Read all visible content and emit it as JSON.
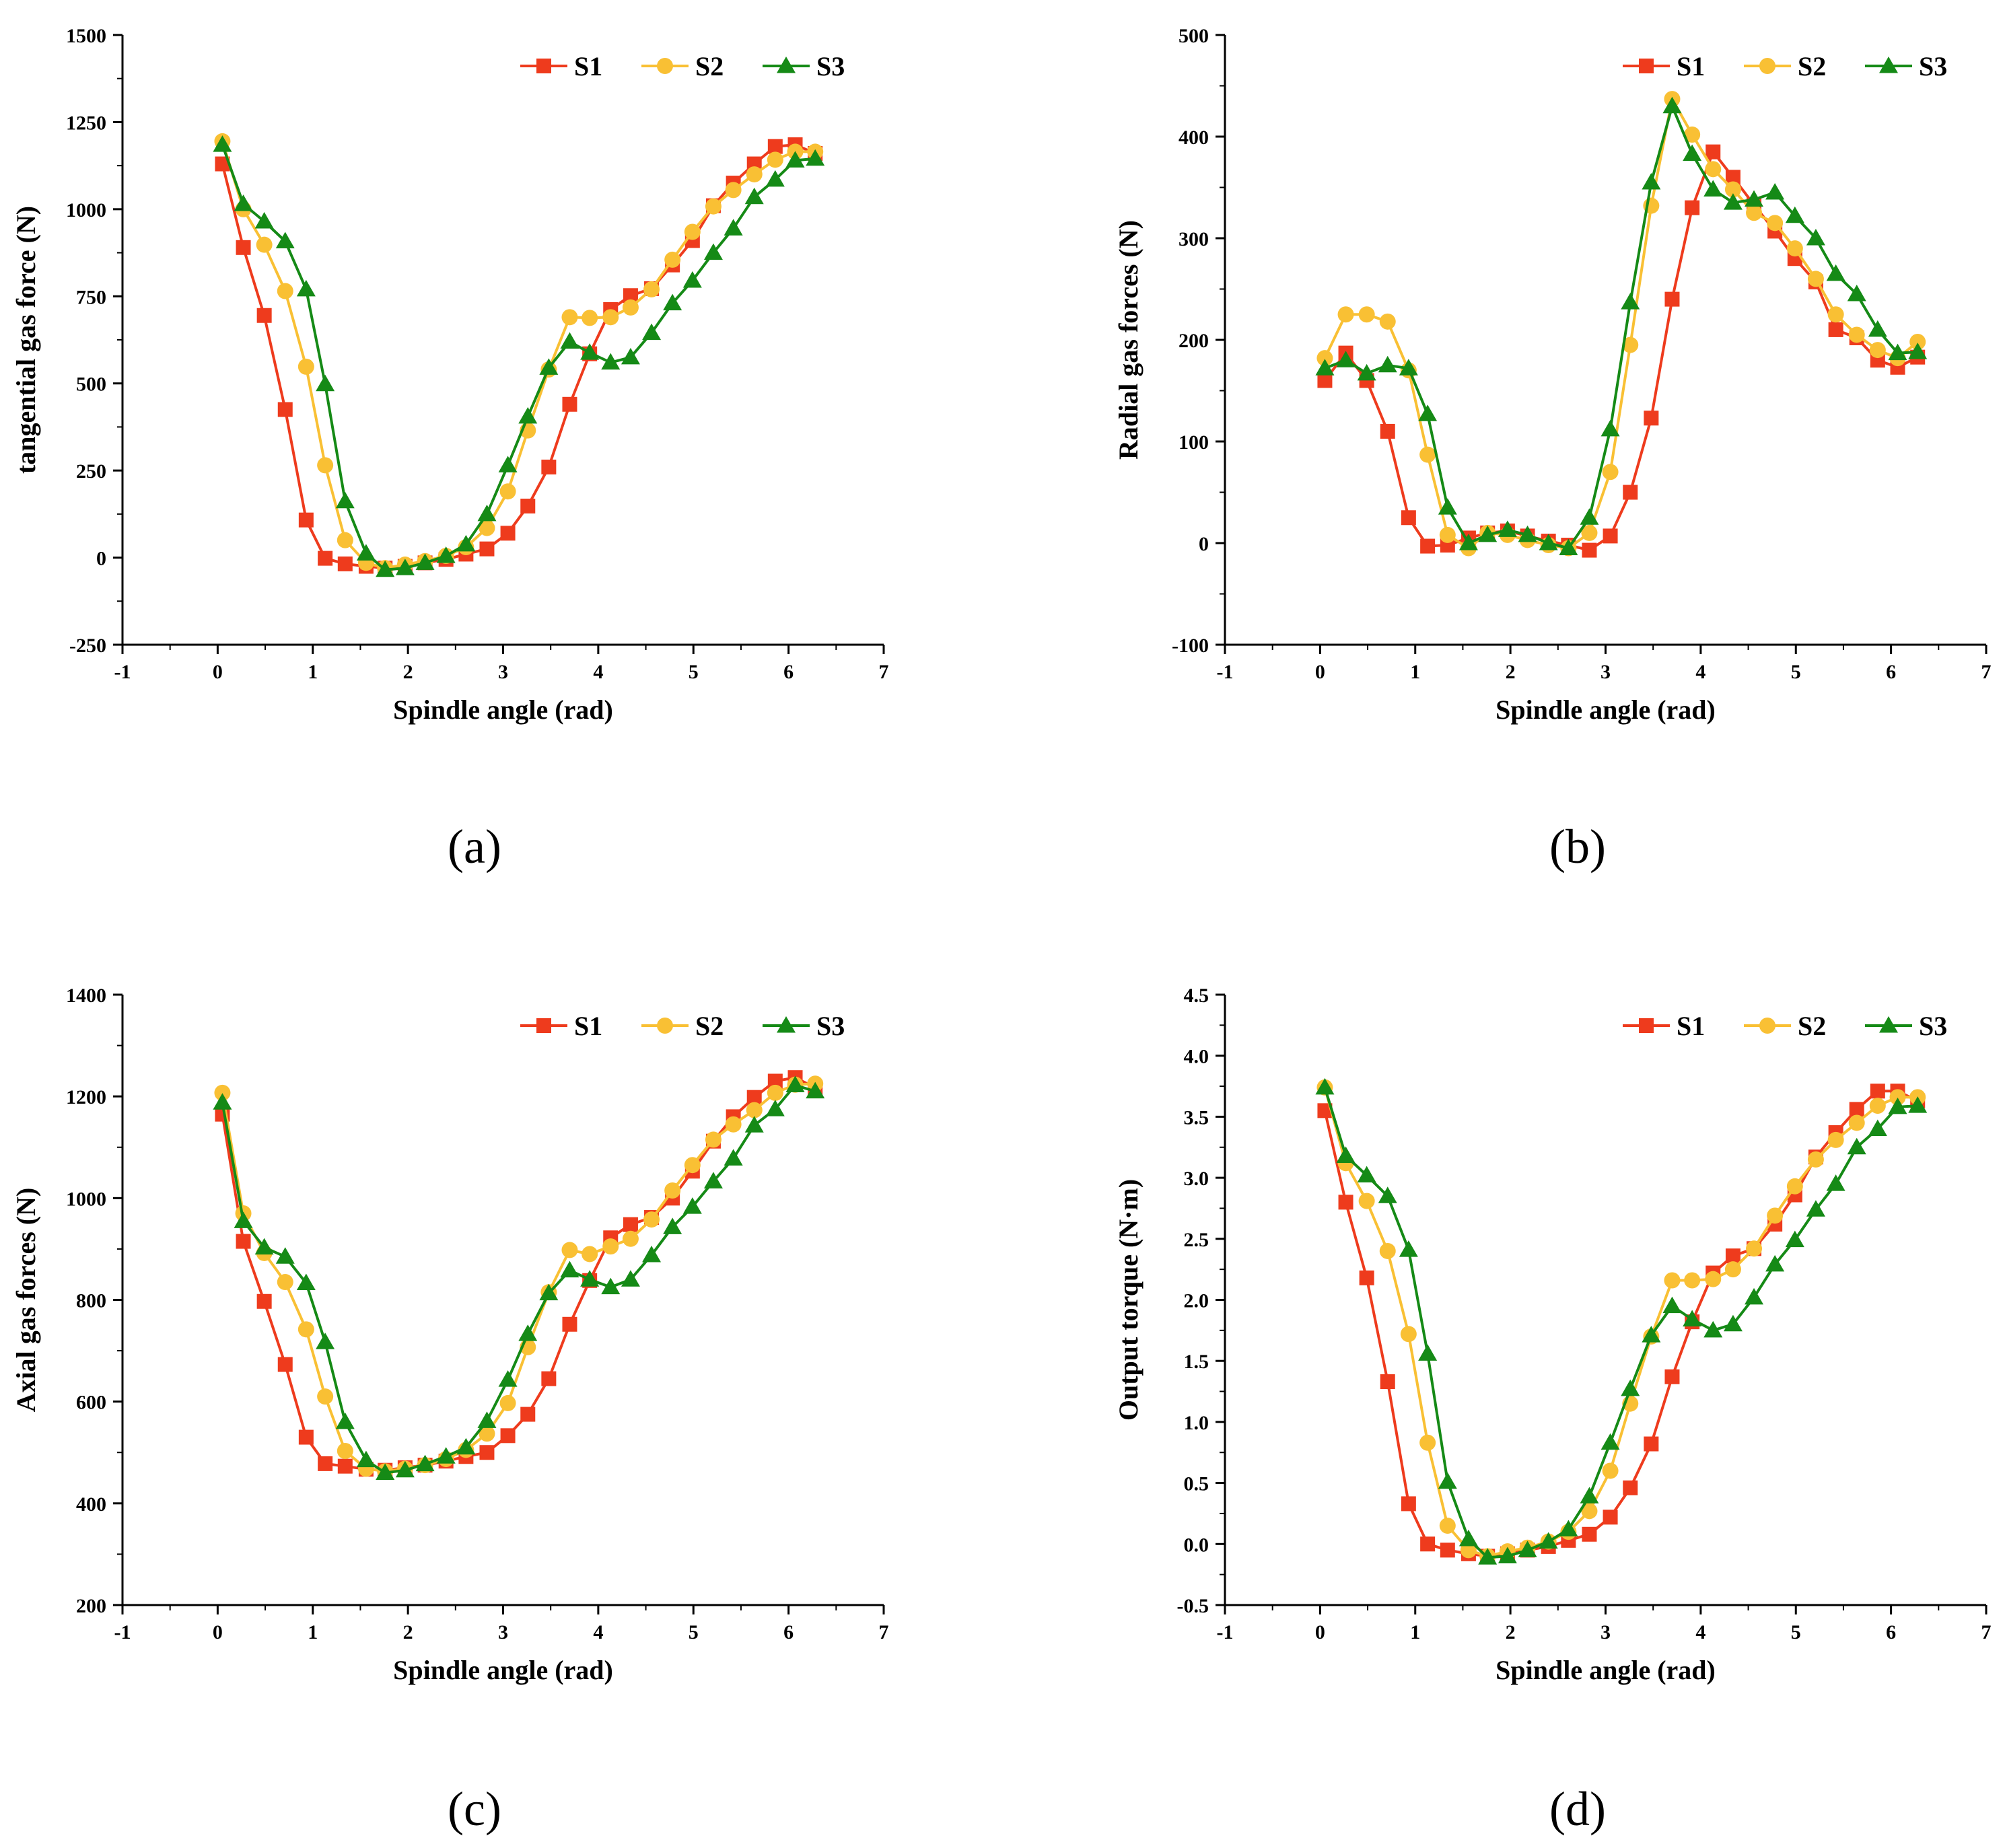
{
  "colors": {
    "S1": "#ee3b1d",
    "S2": "#f9c034",
    "S3": "#158a16",
    "axis": "#000000"
  },
  "chart_data": [
    {
      "id": "a",
      "type": "line",
      "panel_label": "(a)",
      "xlabel": "Spindle angle (rad)",
      "ylabel": "tangential gas force (N)",
      "xlim": [
        -1,
        7
      ],
      "ylim": [
        -250,
        1500
      ],
      "xticks": [
        -1,
        0,
        1,
        2,
        3,
        4,
        5,
        6,
        7
      ],
      "xtick_labels": [
        "-1",
        "0",
        "1",
        "2",
        "3",
        "4",
        "5",
        "6",
        "7"
      ],
      "yticks": [
        -250,
        0,
        250,
        500,
        750,
        1000,
        1250,
        1500
      ],
      "ytick_labels": [
        "-250",
        "0",
        "250",
        "500",
        "750",
        "1000",
        "1250",
        "1500"
      ],
      "legend": [
        "S1",
        "S2",
        "S3"
      ],
      "x": [
        0.05,
        0.27,
        0.49,
        0.71,
        0.93,
        1.13,
        1.34,
        1.56,
        1.76,
        1.97,
        2.18,
        2.4,
        2.61,
        2.83,
        3.05,
        3.26,
        3.48,
        3.7,
        3.91,
        4.13,
        4.34,
        4.56,
        4.78,
        4.99,
        5.21,
        5.42,
        5.64,
        5.86,
        6.07,
        6.28
      ],
      "series": [
        {
          "name": "S1",
          "marker": "square",
          "values": [
            1130,
            890,
            695,
            425,
            108,
            -2,
            -18,
            -25,
            -30,
            -25,
            -15,
            -5,
            10,
            25,
            70,
            148,
            260,
            440,
            585,
            712,
            752,
            772,
            840,
            910,
            1010,
            1075,
            1130,
            1180,
            1185,
            1160
          ]
        },
        {
          "name": "S2",
          "marker": "circle",
          "values": [
            1195,
            1000,
            898,
            765,
            548,
            265,
            50,
            -15,
            -30,
            -20,
            -10,
            5,
            30,
            85,
            190,
            365,
            540,
            690,
            688,
            690,
            718,
            770,
            855,
            935,
            1008,
            1055,
            1100,
            1142,
            1165,
            1165
          ]
        },
        {
          "name": "S3",
          "marker": "triangle",
          "values": [
            1185,
            1015,
            965,
            908,
            770,
            498,
            162,
            12,
            -35,
            -30,
            -15,
            5,
            38,
            125,
            265,
            405,
            545,
            620,
            588,
            560,
            575,
            645,
            730,
            795,
            875,
            945,
            1035,
            1085,
            1140,
            1145
          ]
        }
      ]
    },
    {
      "id": "b",
      "type": "line",
      "panel_label": "(b)",
      "xlabel": "Spindle angle (rad)",
      "ylabel": "Radial gas forces (N)",
      "xlim": [
        -1,
        7
      ],
      "ylim": [
        -100,
        500
      ],
      "xticks": [
        -1,
        0,
        1,
        2,
        3,
        4,
        5,
        6,
        7
      ],
      "xtick_labels": [
        "-1",
        "0",
        "1",
        "2",
        "3",
        "4",
        "5",
        "6",
        "7"
      ],
      "yticks": [
        -100,
        0,
        100,
        200,
        300,
        400,
        500
      ],
      "ytick_labels": [
        "-100",
        "0",
        "100",
        "200",
        "300",
        "400",
        "500"
      ],
      "legend": [
        "S1",
        "S2",
        "S3"
      ],
      "x": [
        0.05,
        0.27,
        0.49,
        0.71,
        0.93,
        1.13,
        1.34,
        1.56,
        1.76,
        1.97,
        2.18,
        2.4,
        2.61,
        2.83,
        3.05,
        3.26,
        3.48,
        3.7,
        3.91,
        4.13,
        4.34,
        4.56,
        4.78,
        4.99,
        5.21,
        5.42,
        5.64,
        5.86,
        6.07,
        6.28
      ],
      "series": [
        {
          "name": "S1",
          "marker": "square",
          "values": [
            160,
            187,
            160,
            110,
            25,
            -3,
            -2,
            5,
            10,
            12,
            7,
            2,
            -2,
            -7,
            7,
            50,
            123,
            240,
            330,
            385,
            360,
            333,
            307,
            280,
            257,
            210,
            202,
            180,
            173,
            183
          ]
        },
        {
          "name": "S2",
          "marker": "circle",
          "values": [
            182,
            225,
            225,
            218,
            170,
            87,
            8,
            -5,
            10,
            8,
            3,
            -2,
            -5,
            10,
            70,
            195,
            332,
            437,
            402,
            368,
            348,
            325,
            315,
            290,
            260,
            225,
            205,
            190,
            182,
            198
          ]
        },
        {
          "name": "S3",
          "marker": "triangle",
          "values": [
            172,
            180,
            167,
            175,
            172,
            127,
            35,
            0,
            8,
            13,
            8,
            0,
            -5,
            25,
            112,
            237,
            355,
            430,
            383,
            348,
            335,
            338,
            345,
            322,
            300,
            265,
            245,
            210,
            187,
            188
          ]
        }
      ]
    },
    {
      "id": "c",
      "type": "line",
      "panel_label": "(c)",
      "xlabel": "Spindle angle (rad)",
      "ylabel": "Axial gas forces (N)",
      "xlim": [
        -1,
        7
      ],
      "ylim": [
        200,
        1400
      ],
      "xticks": [
        -1,
        0,
        1,
        2,
        3,
        4,
        5,
        6,
        7
      ],
      "xtick_labels": [
        "-1",
        "0",
        "1",
        "2",
        "3",
        "4",
        "5",
        "6",
        "7"
      ],
      "yticks": [
        200,
        400,
        600,
        800,
        1000,
        1200,
        1400
      ],
      "ytick_labels": [
        "200",
        "400",
        "600",
        "800",
        "1000",
        "1200",
        "1400"
      ],
      "legend": [
        "S1",
        "S2",
        "S3"
      ],
      "x": [
        0.05,
        0.27,
        0.49,
        0.71,
        0.93,
        1.13,
        1.34,
        1.56,
        1.76,
        1.97,
        2.18,
        2.4,
        2.61,
        2.83,
        3.05,
        3.26,
        3.48,
        3.7,
        3.91,
        4.13,
        4.34,
        4.56,
        4.78,
        4.99,
        5.21,
        5.42,
        5.64,
        5.86,
        6.07,
        6.28
      ],
      "series": [
        {
          "name": "S1",
          "marker": "square",
          "values": [
            1165,
            915,
            797,
            673,
            530,
            478,
            473,
            467,
            465,
            470,
            475,
            483,
            492,
            500,
            533,
            575,
            645,
            752,
            838,
            922,
            948,
            962,
            1000,
            1053,
            1112,
            1160,
            1198,
            1230,
            1237,
            1217
          ]
        },
        {
          "name": "S2",
          "marker": "circle",
          "values": [
            1207,
            970,
            892,
            835,
            742,
            610,
            503,
            468,
            463,
            468,
            475,
            487,
            505,
            537,
            597,
            707,
            815,
            898,
            890,
            905,
            920,
            958,
            1015,
            1065,
            1115,
            1145,
            1173,
            1207,
            1223,
            1225
          ]
        },
        {
          "name": "S3",
          "marker": "triangle",
          "values": [
            1188,
            955,
            903,
            885,
            833,
            717,
            560,
            485,
            460,
            465,
            477,
            492,
            510,
            562,
            643,
            733,
            813,
            858,
            840,
            825,
            840,
            888,
            943,
            983,
            1033,
            1078,
            1143,
            1175,
            1222,
            1210
          ]
        }
      ]
    },
    {
      "id": "d",
      "type": "line",
      "panel_label": "(d)",
      "xlabel": "Spindle angle (rad)",
      "ylabel": "Output torque (N·m)",
      "xlim": [
        -1,
        7
      ],
      "ylim": [
        -0.5,
        4.5
      ],
      "xticks": [
        -1,
        0,
        1,
        2,
        3,
        4,
        5,
        6,
        7
      ],
      "xtick_labels": [
        "-1",
        "0",
        "1",
        "2",
        "3",
        "4",
        "5",
        "6",
        "7"
      ],
      "yticks": [
        -0.5,
        0.0,
        0.5,
        1.0,
        1.5,
        2.0,
        2.5,
        3.0,
        3.5,
        4.0,
        4.5
      ],
      "ytick_labels": [
        "-0.5",
        "0.0",
        "0.5",
        "1.0",
        "1.5",
        "2.0",
        "2.5",
        "3.0",
        "3.5",
        "4.0",
        "4.5"
      ],
      "legend": [
        "S1",
        "S2",
        "S3"
      ],
      "x": [
        0.05,
        0.27,
        0.49,
        0.71,
        0.93,
        1.13,
        1.34,
        1.56,
        1.76,
        1.97,
        2.18,
        2.4,
        2.61,
        2.83,
        3.05,
        3.26,
        3.48,
        3.7,
        3.91,
        4.13,
        4.34,
        4.56,
        4.78,
        4.99,
        5.21,
        5.42,
        5.64,
        5.86,
        6.07,
        6.28
      ],
      "series": [
        {
          "name": "S1",
          "marker": "square",
          "values": [
            3.55,
            2.8,
            2.18,
            1.33,
            0.33,
            0.0,
            -0.05,
            -0.08,
            -0.1,
            -0.08,
            -0.05,
            -0.02,
            0.03,
            0.08,
            0.22,
            0.46,
            0.82,
            1.37,
            1.82,
            2.22,
            2.36,
            2.42,
            2.62,
            2.86,
            3.17,
            3.37,
            3.56,
            3.71,
            3.71,
            3.63
          ]
        },
        {
          "name": "S2",
          "marker": "circle",
          "values": [
            3.74,
            3.12,
            2.81,
            2.4,
            1.72,
            0.83,
            0.15,
            -0.05,
            -0.1,
            -0.06,
            -0.03,
            0.02,
            0.1,
            0.27,
            0.6,
            1.15,
            1.7,
            2.16,
            2.16,
            2.17,
            2.25,
            2.42,
            2.69,
            2.93,
            3.15,
            3.31,
            3.45,
            3.59,
            3.66,
            3.66
          ]
        },
        {
          "name": "S3",
          "marker": "triangle",
          "values": [
            3.74,
            3.18,
            3.02,
            2.85,
            2.41,
            1.56,
            0.51,
            0.04,
            -0.11,
            -0.1,
            -0.05,
            0.02,
            0.12,
            0.39,
            0.83,
            1.27,
            1.71,
            1.95,
            1.84,
            1.75,
            1.8,
            2.02,
            2.29,
            2.49,
            2.74,
            2.95,
            3.25,
            3.4,
            3.58,
            3.59
          ]
        }
      ]
    }
  ]
}
